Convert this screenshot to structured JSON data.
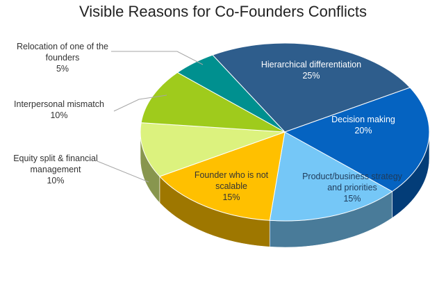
{
  "chart_data": {
    "type": "pie",
    "title": "Visible Reasons for Co-Founders Conflicts",
    "categories": [
      "Hierarchical differentiation",
      "Decision making",
      "Product/business strategy and priorities",
      "Founder who is not scalable",
      "Equity split & financial management",
      "Interpersonal mismatch",
      "Relocation of one of the founders"
    ],
    "values": [
      25,
      20,
      15,
      15,
      10,
      10,
      5
    ],
    "value_labels": [
      "25%",
      "20%",
      "15%",
      "15%",
      "10%",
      "10%",
      "5%"
    ],
    "colors": [
      "#2e5d8c",
      "#0563c1",
      "#75c7f7",
      "#ffc000",
      "#dcf27e",
      "#9fcb1c",
      "#00908f"
    ]
  }
}
